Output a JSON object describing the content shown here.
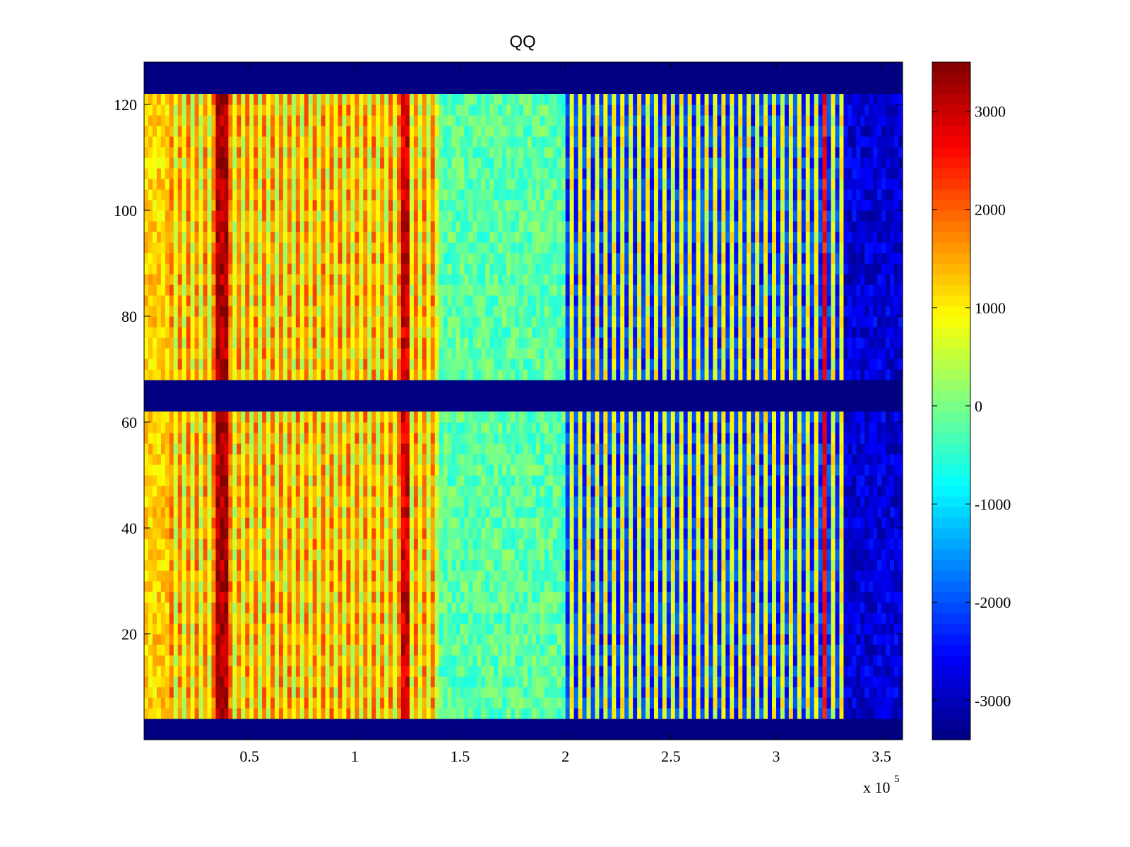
{
  "chart_data": {
    "type": "heatmap",
    "title": "QQ",
    "colormap": "jet",
    "xlabel": "",
    "ylabel": "",
    "x_range": [
      0,
      3.6
    ],
    "y_range": [
      0,
      128
    ],
    "x_exponent_label": "x 10",
    "x_exponent": "5",
    "x_ticks": [
      0.5,
      1,
      1.5,
      2,
      2.5,
      3,
      3.5
    ],
    "x_tick_labels": [
      "0.5",
      "1",
      "1.5",
      "2",
      "2.5",
      "3",
      "3.5"
    ],
    "y_ticks": [
      20,
      40,
      60,
      80,
      100,
      120
    ],
    "y_tick_labels": [
      "20",
      "40",
      "60",
      "80",
      "100",
      "120"
    ],
    "colorbar": {
      "range": [
        -3400,
        3500
      ],
      "ticks": [
        -3000,
        -2000,
        -1000,
        0,
        1000,
        2000,
        3000
      ],
      "tick_labels": [
        "-3000",
        "-2000",
        "-1000",
        "0",
        "1000",
        "2000",
        "3000"
      ]
    },
    "empty_rows": [
      {
        "from": 0,
        "to": 3,
        "value": -3400
      },
      {
        "from": 62,
        "to": 67,
        "value": -3400
      },
      {
        "from": 121,
        "to": 128,
        "value": -3400
      }
    ],
    "value_regions": [
      {
        "x_from": 0.0,
        "x_to": 0.12,
        "value": 1200,
        "striped": false
      },
      {
        "x_from": 0.12,
        "x_to": 1.4,
        "value": 1800,
        "striped": true,
        "stripe_low": 600
      },
      {
        "x_from": 0.35,
        "x_to": 0.4,
        "value": 3200,
        "striped": false
      },
      {
        "x_from": 1.22,
        "x_to": 1.26,
        "value": 2900,
        "striped": false
      },
      {
        "x_from": 1.4,
        "x_to": 2.0,
        "value": -200,
        "striped": false
      },
      {
        "x_from": 2.0,
        "x_to": 3.33,
        "value": -2200,
        "striped": true,
        "stripe_high": 800
      },
      {
        "x_from": 3.22,
        "x_to": 3.25,
        "value": 2600,
        "striped": false
      },
      {
        "x_from": 3.33,
        "x_to": 3.6,
        "value": -2800,
        "striped": false
      }
    ]
  }
}
